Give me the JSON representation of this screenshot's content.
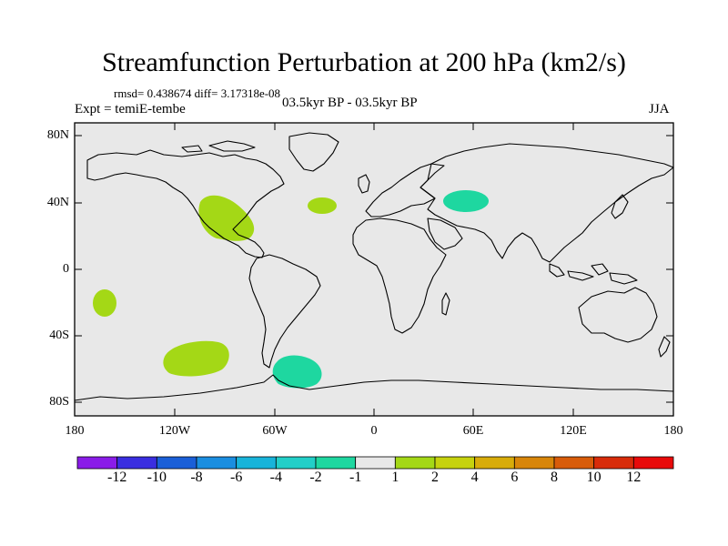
{
  "title": "Streamfunction Perturbation at 200 hPa (km2/s)",
  "stats": "rmsd= 0.438674 diff= 3.17318e-08",
  "experiment": "Expt = temiE-tembe",
  "period": "03.5kyr BP - 03.5kyr BP",
  "season": "JJA",
  "lat_labels": [
    "80N",
    "40N",
    "0",
    "40S",
    "80S"
  ],
  "lon_labels": [
    "180",
    "120W",
    "60W",
    "0",
    "60E",
    "120E",
    "180"
  ],
  "colorbar": {
    "labels": [
      "-12",
      "-10",
      "-8",
      "-6",
      "-4",
      "-2",
      "-1",
      "1",
      "2",
      "4",
      "6",
      "8",
      "10",
      "12"
    ],
    "colors": [
      "#8a1ce8",
      "#3a2ee0",
      "#1a5fd8",
      "#1a8ee0",
      "#18b4da",
      "#22cfc8",
      "#1ed7a0",
      "#e8e8e8",
      "#a4d816",
      "#c6d20e",
      "#d8ac0a",
      "#d8860a",
      "#d85c0a",
      "#d82c0a",
      "#e80a0a"
    ]
  },
  "anomalies": [
    {
      "name": "north-america-positive",
      "lon": -100,
      "lat": 32,
      "color": "#a4d816"
    },
    {
      "name": "north-atlantic-positive",
      "lon": -38,
      "lat": 40,
      "color": "#a4d816"
    },
    {
      "name": "central-asia-negative",
      "lon": 57,
      "lat": 42,
      "color": "#1ed7a0"
    },
    {
      "name": "south-pacific-positive",
      "lon": -165,
      "lat": -25,
      "color": "#a4d816"
    },
    {
      "name": "southeast-pacific-positive",
      "lon": -110,
      "lat": -57,
      "color": "#a4d816"
    },
    {
      "name": "drake-passage-negative",
      "lon": -55,
      "lat": -63,
      "color": "#1ed7a0"
    }
  ]
}
